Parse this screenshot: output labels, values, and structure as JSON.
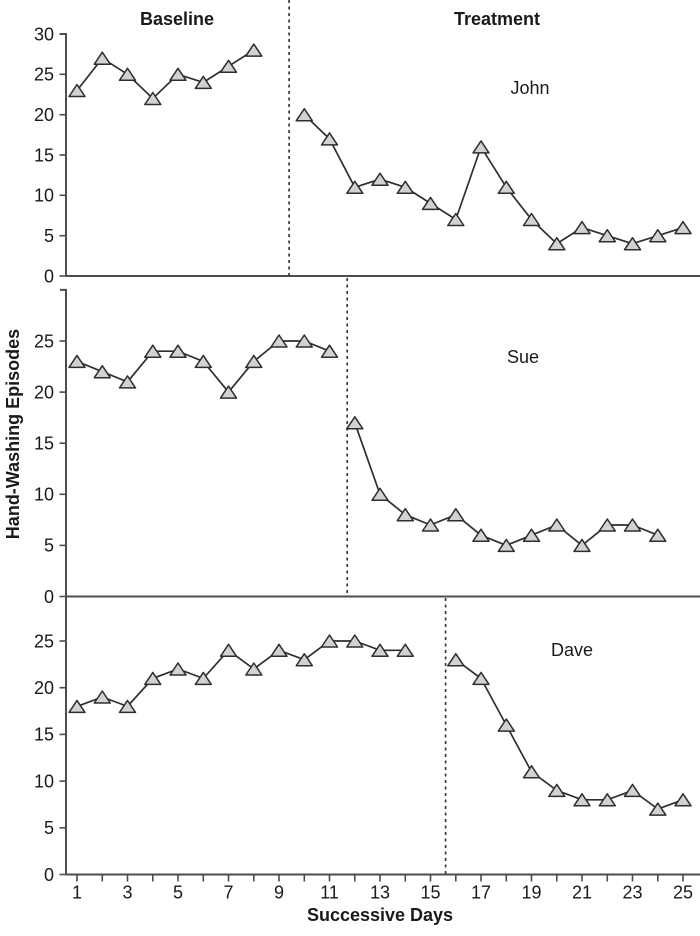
{
  "figure": {
    "y_axis_title": "Hand-Washing Episodes",
    "x_axis_title": "Successive Days",
    "phase_labels": {
      "baseline": "Baseline",
      "treatment": "Treatment"
    }
  },
  "x_axis": {
    "range": [
      1,
      25
    ],
    "tick_labels": [
      "1",
      "3",
      "5",
      "7",
      "9",
      "11",
      "13",
      "15",
      "17",
      "19",
      "21",
      "23",
      "25"
    ],
    "minor_ticks_every_day": true
  },
  "colors": {
    "marker_fill": "#d2d2d2",
    "marker_stroke": "#2e2e2e",
    "series_line": "#2e2e2e",
    "axis": "#4d4d4d",
    "text": "#1a1a1a",
    "phase_line": "#3a3a3a"
  },
  "chart_data": [
    {
      "type": "line",
      "subject": "John",
      "panel": "top",
      "ylim": [
        0,
        30
      ],
      "yticks": [
        "0",
        "5",
        "10",
        "15",
        "20",
        "25",
        "30"
      ],
      "phase_change_day": 9.4,
      "series": [
        {
          "name": "Baseline",
          "x": [
            1,
            2,
            3,
            4,
            5,
            6,
            7,
            8
          ],
          "values": [
            23,
            27,
            25,
            22,
            25,
            24,
            26,
            28
          ]
        },
        {
          "name": "Treatment",
          "x": [
            10,
            11,
            12,
            13,
            14,
            15,
            16,
            17,
            18,
            19,
            20,
            21,
            22,
            23,
            24,
            25
          ],
          "values": [
            20,
            17,
            11,
            12,
            11,
            9,
            7,
            16,
            11,
            7,
            4,
            6,
            5,
            4,
            5,
            6
          ]
        }
      ]
    },
    {
      "type": "line",
      "subject": "Sue",
      "panel": "middle",
      "ylim": [
        0,
        30
      ],
      "yticks": [
        "0",
        "5",
        "10",
        "15",
        "20",
        "25"
      ],
      "phase_change_day": 11.7,
      "series": [
        {
          "name": "Baseline",
          "x": [
            1,
            2,
            3,
            4,
            5,
            6,
            7,
            8,
            9,
            10,
            11
          ],
          "values": [
            23,
            22,
            21,
            24,
            24,
            23,
            20,
            23,
            25,
            25,
            24
          ]
        },
        {
          "name": "Treatment",
          "x": [
            12,
            13,
            14,
            15,
            16,
            17,
            18,
            19,
            20,
            21,
            22,
            23,
            24
          ],
          "values": [
            17,
            10,
            8,
            7,
            8,
            6,
            5,
            6,
            7,
            5,
            7,
            7,
            6
          ]
        }
      ]
    },
    {
      "type": "line",
      "subject": "Dave",
      "panel": "bottom",
      "ylim": [
        0,
        30
      ],
      "yticks": [
        "0",
        "5",
        "10",
        "15",
        "20",
        "25"
      ],
      "phase_change_day": 15.6,
      "series": [
        {
          "name": "Baseline",
          "x": [
            1,
            2,
            3,
            4,
            5,
            6,
            7,
            8,
            9,
            10,
            11,
            12,
            13,
            14
          ],
          "values": [
            18,
            19,
            18,
            21,
            22,
            21,
            24,
            22,
            24,
            23,
            25,
            25,
            24,
            24
          ]
        },
        {
          "name": "Treatment",
          "x": [
            16,
            17,
            18,
            19,
            20,
            21,
            22,
            23,
            24,
            25
          ],
          "values": [
            23,
            21,
            16,
            11,
            9,
            8,
            8,
            9,
            7,
            8
          ]
        }
      ]
    }
  ]
}
